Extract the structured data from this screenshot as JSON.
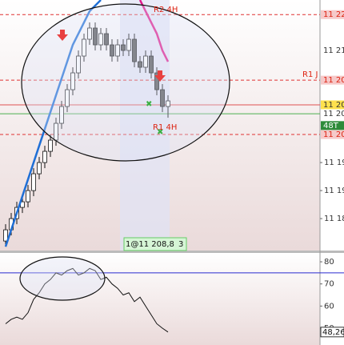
{
  "chart_data": [
    {
      "type": "candlestick",
      "x": [
        0,
        1,
        2,
        3,
        4,
        5,
        6,
        7,
        8,
        9,
        10,
        11,
        12,
        13,
        14,
        15,
        16,
        17,
        18,
        19,
        20,
        21,
        22,
        23,
        24,
        25,
        26,
        27,
        28,
        29
      ],
      "open": [
        11181,
        11183,
        11185,
        11187,
        11188,
        11190,
        11193,
        11195,
        11197,
        11199,
        11202,
        11205,
        11208,
        11211,
        11214,
        11217,
        11219,
        11216,
        11218,
        11216,
        11214,
        11216,
        11215,
        11217,
        11213,
        11212,
        11214,
        11211,
        11208,
        11205
      ],
      "high": [
        11184,
        11186,
        11188,
        11189,
        11191,
        11194,
        11196,
        11198,
        11200,
        11203,
        11206,
        11209,
        11212,
        11215,
        11218,
        11220,
        11220,
        11219,
        11219,
        11217,
        11217,
        11217,
        11218,
        11218,
        11214,
        11215,
        11215,
        11212,
        11209,
        11207
      ],
      "low": [
        11180,
        11182,
        11184,
        11186,
        11187,
        11189,
        11192,
        11194,
        11196,
        11198,
        11201,
        11204,
        11207,
        11210,
        11213,
        11216,
        11215,
        11215,
        11215,
        11213,
        11213,
        11214,
        11214,
        11212,
        11211,
        11211,
        11210,
        11207,
        11204,
        11203
      ],
      "close": [
        11183,
        11185,
        11187,
        11188,
        11190,
        11193,
        11195,
        11197,
        11199,
        11202,
        11205,
        11208,
        11211,
        11214,
        11217,
        11219,
        11216,
        11218,
        11216,
        11214,
        11216,
        11215,
        11217,
        11213,
        11212,
        11214,
        11211,
        11208,
        11205,
        11206
      ],
      "xlim": [
        -1,
        56.14
      ],
      "ylim": [
        11179.3,
        11224
      ],
      "yticks": [
        {
          "value": 11185,
          "label": "11 18"
        },
        {
          "value": 11190,
          "label": "11 19"
        },
        {
          "value": 11195,
          "label": "11 19"
        }
      ],
      "lines": [
        {
          "color": "#1f6fd6",
          "x": [
            0,
            1,
            2,
            3,
            4,
            5,
            6,
            7,
            8,
            9,
            10,
            11,
            12,
            13,
            14,
            15,
            16,
            17
          ],
          "values": [
            11180,
            11183,
            11186,
            11189,
            11192,
            11195,
            11198,
            11201,
            11204,
            11207,
            11210,
            11213,
            11216,
            11218,
            11220,
            11222,
            11223,
            11224
          ]
        },
        {
          "color": "#e0198c",
          "x": [
            24,
            25,
            26,
            27,
            28,
            29
          ],
          "values": [
            11224,
            11222,
            11220,
            11218,
            11215,
            11213
          ]
        }
      ],
      "price_tags": [
        {
          "value": 11221.4,
          "label": "11 22",
          "background": "#f6c9c9",
          "text_color": "#d21",
          "line": "dashed"
        },
        {
          "value": 11215,
          "label": "11 21",
          "background": "#ffffff",
          "text_color": "#333"
        },
        {
          "value": 11209.7,
          "label": "11 20",
          "background": "#f6c9c9",
          "text_color": "#d21",
          "line": "dashed"
        },
        {
          "value": 11205.3,
          "label": "11 20",
          "background": "#ffe14d",
          "text_color": "#333",
          "line": "solid",
          "line_color": "#e05050"
        },
        {
          "value": 11203.7,
          "label": "11 20",
          "background": "#ffffff",
          "text_color": "#333",
          "line": "solid",
          "line_color": "#4caf50"
        },
        {
          "value": 11201.6,
          "label": "48T",
          "background": "#2e8b3a",
          "text_color": "#fff"
        },
        {
          "value": 11200,
          "label": "11 20",
          "background": "#f6c9c9",
          "text_color": "#d21",
          "line": "dashed"
        }
      ],
      "annotations": [
        "R2 4H",
        "R1 J",
        "R1 4H"
      ],
      "order_label": "1@11 208,8",
      "order_count": "3"
    },
    {
      "type": "line",
      "x": [
        0,
        1,
        2,
        3,
        4,
        5,
        6,
        7,
        8,
        9,
        10,
        11,
        12,
        13,
        14,
        15,
        16,
        17,
        18,
        19,
        20,
        21,
        22,
        23,
        24,
        25,
        26,
        27,
        28,
        29
      ],
      "values": [
        52,
        54,
        55,
        54,
        57,
        63,
        66,
        70,
        72,
        75,
        74,
        76,
        77,
        74,
        75,
        77,
        76,
        72,
        73,
        70,
        68,
        65,
        66,
        62,
        64,
        60,
        56,
        52,
        50,
        48.26
      ],
      "color": "#111111",
      "xlim": [
        -1,
        56.14
      ],
      "ylim": [
        42.4,
        84
      ],
      "yticks": [
        50,
        60,
        70,
        80
      ],
      "level": 75,
      "last_value_label": "48,26"
    }
  ]
}
